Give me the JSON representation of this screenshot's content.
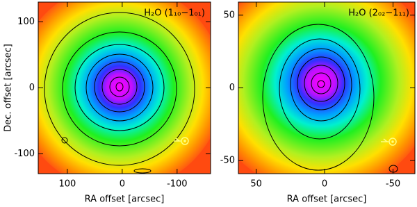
{
  "chart_data": [
    {
      "type": "map",
      "title": "H₂O (1₁₀−1₀₁)",
      "xlabel": "RA offset [arcsec]",
      "ylabel": "Dec. offset [arcsec]",
      "xlim": [
        153,
        -161
      ],
      "ylim": [
        -130,
        130
      ],
      "xticks": [
        100,
        0,
        -100
      ],
      "yticks": [
        -100,
        0,
        100
      ]
    },
    {
      "type": "map",
      "title": "H₂O (2₀₂−1₁₁)",
      "xlabel": "RA offset [arcsec]",
      "xlim": [
        63,
        -66
      ],
      "ylim": [
        -59,
        59
      ],
      "xticks": [
        50,
        0,
        -50
      ],
      "yticks": [
        -50,
        0,
        50
      ]
    }
  ]
}
